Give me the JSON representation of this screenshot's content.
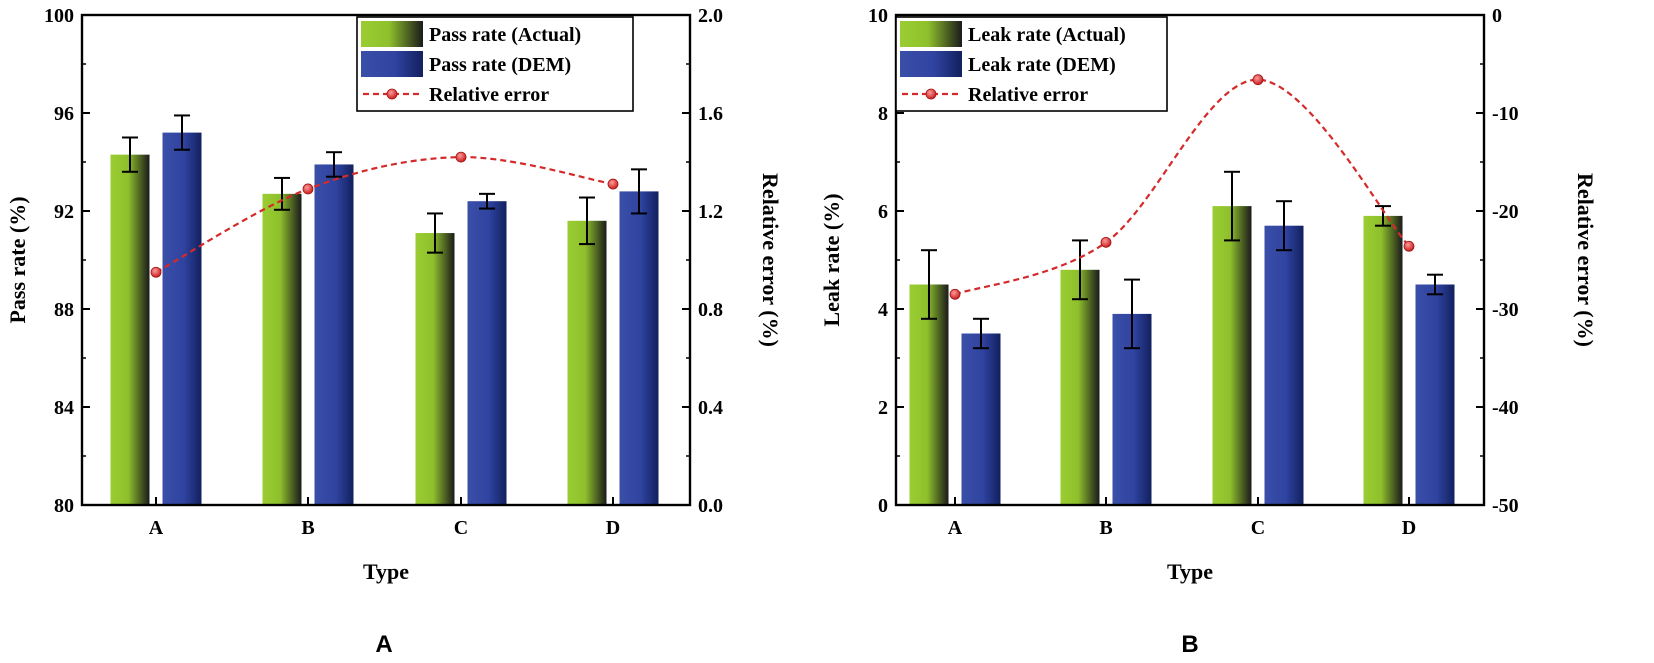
{
  "chart_data": [
    {
      "type": "bar",
      "panel_label": "A",
      "categories": [
        "A",
        "B",
        "C",
        "D"
      ],
      "xlabel": "Type",
      "ylabel": "Pass rate (%)",
      "ylim": [
        80,
        100
      ],
      "yticks": [
        "80",
        "84",
        "88",
        "92",
        "96",
        "100"
      ],
      "y2label": "Relative error (%)",
      "y2lim": [
        0,
        2.0
      ],
      "y2ticks": [
        "0.0",
        "0.4",
        "0.8",
        "1.2",
        "1.6",
        "2.0"
      ],
      "series": [
        {
          "name": "Pass rate (Actual)",
          "kind": "bar",
          "color_start": "#9ACD32",
          "color_end": "#1a1a1a",
          "values": [
            94.3,
            92.7,
            91.1,
            91.6
          ],
          "errors": [
            0.7,
            0.65,
            0.8,
            0.95
          ]
        },
        {
          "name": "Pass rate (DEM)",
          "kind": "bar",
          "color_start": "#3A4FA8",
          "color_end": "#12205e",
          "values": [
            95.2,
            93.9,
            92.4,
            92.8
          ],
          "errors": [
            0.7,
            0.5,
            0.3,
            0.9
          ]
        },
        {
          "name": "Relative error",
          "kind": "line",
          "axis": "y2",
          "color": "#D42A2A",
          "values": [
            0.95,
            1.29,
            1.42,
            1.31
          ]
        }
      ],
      "legend": "top-right"
    },
    {
      "type": "bar",
      "panel_label": "B",
      "categories": [
        "A",
        "B",
        "C",
        "D"
      ],
      "xlabel": "Type",
      "ylabel": "Leak rate (%)",
      "ylim": [
        0,
        10
      ],
      "yticks": [
        "0",
        "2",
        "4",
        "6",
        "8",
        "10"
      ],
      "y2label": "Relative error (%)",
      "y2lim": [
        -50,
        0
      ],
      "y2ticks": [
        "-50",
        "-40",
        "-30",
        "-20",
        "-10",
        "0"
      ],
      "series": [
        {
          "name": "Leak rate (Actual)",
          "kind": "bar",
          "color_start": "#9ACD32",
          "color_end": "#1a1a1a",
          "values": [
            4.5,
            4.8,
            6.1,
            5.9
          ],
          "errors": [
            0.7,
            0.6,
            0.7,
            0.2
          ]
        },
        {
          "name": "Leak rate (DEM)",
          "kind": "bar",
          "color_start": "#3A4FA8",
          "color_end": "#12205e",
          "values": [
            3.5,
            3.9,
            5.7,
            4.5
          ],
          "errors": [
            0.3,
            0.7,
            0.5,
            0.2
          ]
        },
        {
          "name": "Relative error",
          "kind": "line",
          "axis": "y2",
          "color": "#D42A2A",
          "values": [
            -28.5,
            -23.2,
            -6.6,
            -23.6
          ]
        }
      ],
      "legend": "top-left"
    }
  ]
}
